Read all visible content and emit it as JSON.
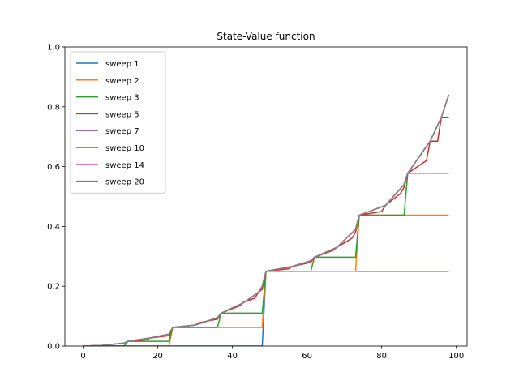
{
  "chart_data": {
    "type": "line",
    "title": "State-Value function",
    "xlabel": "",
    "ylabel": "",
    "xlim": [
      -4.9,
      102.9
    ],
    "ylim": [
      0.0,
      1.0
    ],
    "xticks": [
      0,
      20,
      40,
      60,
      80,
      100
    ],
    "yticks": [
      0.0,
      0.2,
      0.4,
      0.6,
      0.8,
      1.0
    ],
    "xtick_labels": [
      "0",
      "20",
      "40",
      "60",
      "80",
      "100"
    ],
    "ytick_labels": [
      "0.0",
      "0.2",
      "0.4",
      "0.6",
      "0.8",
      "1.0"
    ],
    "grid": false,
    "legend_position": "upper-left",
    "series": [
      {
        "name": "sweep 1",
        "color": "#1f77b4",
        "points": [
          [
            0,
            0
          ],
          [
            48,
            0
          ],
          [
            49,
            0.25
          ],
          [
            98,
            0.25
          ]
        ]
      },
      {
        "name": "sweep 2",
        "color": "#ff7f0e",
        "points": [
          [
            0,
            0
          ],
          [
            23,
            0
          ],
          [
            24,
            0.0625
          ],
          [
            48,
            0.0625
          ],
          [
            49,
            0.25
          ],
          [
            73,
            0.25
          ],
          [
            74,
            0.4375
          ],
          [
            98,
            0.4375
          ]
        ]
      },
      {
        "name": "sweep 3",
        "color": "#2ca02c",
        "points": [
          [
            0,
            0
          ],
          [
            11,
            0
          ],
          [
            12,
            0.016
          ],
          [
            23,
            0.016
          ],
          [
            24,
            0.0625
          ],
          [
            36,
            0.0625
          ],
          [
            37,
            0.11
          ],
          [
            48,
            0.11
          ],
          [
            49,
            0.25
          ],
          [
            61,
            0.25
          ],
          [
            62,
            0.297
          ],
          [
            73,
            0.297
          ],
          [
            74,
            0.4375
          ],
          [
            86,
            0.4375
          ],
          [
            87,
            0.578
          ],
          [
            98,
            0.578
          ]
        ]
      },
      {
        "name": "sweep 5",
        "color": "#d62728",
        "points": [
          [
            0,
            0
          ],
          [
            5,
            0.002
          ],
          [
            6,
            0.004
          ],
          [
            11,
            0.01
          ],
          [
            12,
            0.016
          ],
          [
            17,
            0.021
          ],
          [
            18,
            0.027
          ],
          [
            23,
            0.035
          ],
          [
            24,
            0.0625
          ],
          [
            30,
            0.07
          ],
          [
            31,
            0.078
          ],
          [
            36,
            0.09
          ],
          [
            37,
            0.11
          ],
          [
            42,
            0.135
          ],
          [
            43,
            0.147
          ],
          [
            46,
            0.16
          ],
          [
            47,
            0.18
          ],
          [
            48,
            0.19
          ],
          [
            49,
            0.25
          ],
          [
            55,
            0.258
          ],
          [
            56,
            0.266
          ],
          [
            61,
            0.28
          ],
          [
            62,
            0.297
          ],
          [
            67,
            0.32
          ],
          [
            68,
            0.33
          ],
          [
            72,
            0.36
          ],
          [
            73,
            0.38
          ],
          [
            74,
            0.4375
          ],
          [
            80,
            0.45
          ],
          [
            81,
            0.47
          ],
          [
            85,
            0.51
          ],
          [
            86,
            0.53
          ],
          [
            87,
            0.578
          ],
          [
            92,
            0.62
          ],
          [
            93,
            0.685
          ],
          [
            95,
            0.685
          ],
          [
            96,
            0.765
          ],
          [
            98,
            0.765
          ]
        ]
      },
      {
        "name": "sweep 7",
        "color": "#9467bd",
        "points": [
          [
            0,
            0
          ],
          [
            5,
            0.002
          ],
          [
            11,
            0.01
          ],
          [
            12,
            0.016
          ],
          [
            18,
            0.027
          ],
          [
            23,
            0.04
          ],
          [
            24,
            0.0625
          ],
          [
            30,
            0.07
          ],
          [
            36,
            0.095
          ],
          [
            37,
            0.11
          ],
          [
            43,
            0.145
          ],
          [
            47,
            0.18
          ],
          [
            48,
            0.2
          ],
          [
            49,
            0.25
          ],
          [
            56,
            0.266
          ],
          [
            61,
            0.285
          ],
          [
            62,
            0.297
          ],
          [
            68,
            0.33
          ],
          [
            73,
            0.39
          ],
          [
            74,
            0.4375
          ],
          [
            81,
            0.47
          ],
          [
            86,
            0.54
          ],
          [
            87,
            0.578
          ],
          [
            93,
            0.685
          ],
          [
            96,
            0.765
          ],
          [
            98,
            0.84
          ]
        ]
      },
      {
        "name": "sweep 10",
        "color": "#8c564b",
        "points": [
          [
            0,
            0
          ],
          [
            5,
            0.002
          ],
          [
            11,
            0.01
          ],
          [
            12,
            0.016
          ],
          [
            18,
            0.027
          ],
          [
            23,
            0.04
          ],
          [
            24,
            0.0625
          ],
          [
            30,
            0.07
          ],
          [
            36,
            0.095
          ],
          [
            37,
            0.11
          ],
          [
            43,
            0.145
          ],
          [
            47,
            0.18
          ],
          [
            48,
            0.2
          ],
          [
            49,
            0.25
          ],
          [
            56,
            0.266
          ],
          [
            61,
            0.285
          ],
          [
            62,
            0.297
          ],
          [
            68,
            0.33
          ],
          [
            73,
            0.39
          ],
          [
            74,
            0.4375
          ],
          [
            81,
            0.47
          ],
          [
            86,
            0.54
          ],
          [
            87,
            0.578
          ],
          [
            93,
            0.685
          ],
          [
            96,
            0.765
          ],
          [
            98,
            0.84
          ]
        ]
      },
      {
        "name": "sweep 14",
        "color": "#e377c2",
        "points": [
          [
            0,
            0
          ],
          [
            5,
            0.002
          ],
          [
            11,
            0.01
          ],
          [
            12,
            0.016
          ],
          [
            18,
            0.027
          ],
          [
            23,
            0.04
          ],
          [
            24,
            0.0625
          ],
          [
            30,
            0.07
          ],
          [
            36,
            0.095
          ],
          [
            37,
            0.11
          ],
          [
            43,
            0.145
          ],
          [
            47,
            0.18
          ],
          [
            48,
            0.2
          ],
          [
            49,
            0.25
          ],
          [
            56,
            0.266
          ],
          [
            61,
            0.285
          ],
          [
            62,
            0.297
          ],
          [
            68,
            0.33
          ],
          [
            73,
            0.39
          ],
          [
            74,
            0.4375
          ],
          [
            81,
            0.47
          ],
          [
            86,
            0.54
          ],
          [
            87,
            0.578
          ],
          [
            93,
            0.685
          ],
          [
            96,
            0.765
          ],
          [
            98,
            0.84
          ]
        ]
      },
      {
        "name": "sweep 20",
        "color": "#7f7f7f",
        "points": [
          [
            0,
            0
          ],
          [
            5,
            0.002
          ],
          [
            11,
            0.01
          ],
          [
            12,
            0.016
          ],
          [
            18,
            0.027
          ],
          [
            23,
            0.04
          ],
          [
            24,
            0.0625
          ],
          [
            30,
            0.07
          ],
          [
            36,
            0.095
          ],
          [
            37,
            0.11
          ],
          [
            43,
            0.145
          ],
          [
            47,
            0.18
          ],
          [
            48,
            0.2
          ],
          [
            49,
            0.25
          ],
          [
            56,
            0.266
          ],
          [
            61,
            0.285
          ],
          [
            62,
            0.297
          ],
          [
            68,
            0.33
          ],
          [
            73,
            0.39
          ],
          [
            74,
            0.4375
          ],
          [
            81,
            0.47
          ],
          [
            86,
            0.54
          ],
          [
            87,
            0.578
          ],
          [
            93,
            0.685
          ],
          [
            96,
            0.765
          ],
          [
            98,
            0.84
          ]
        ]
      }
    ]
  }
}
